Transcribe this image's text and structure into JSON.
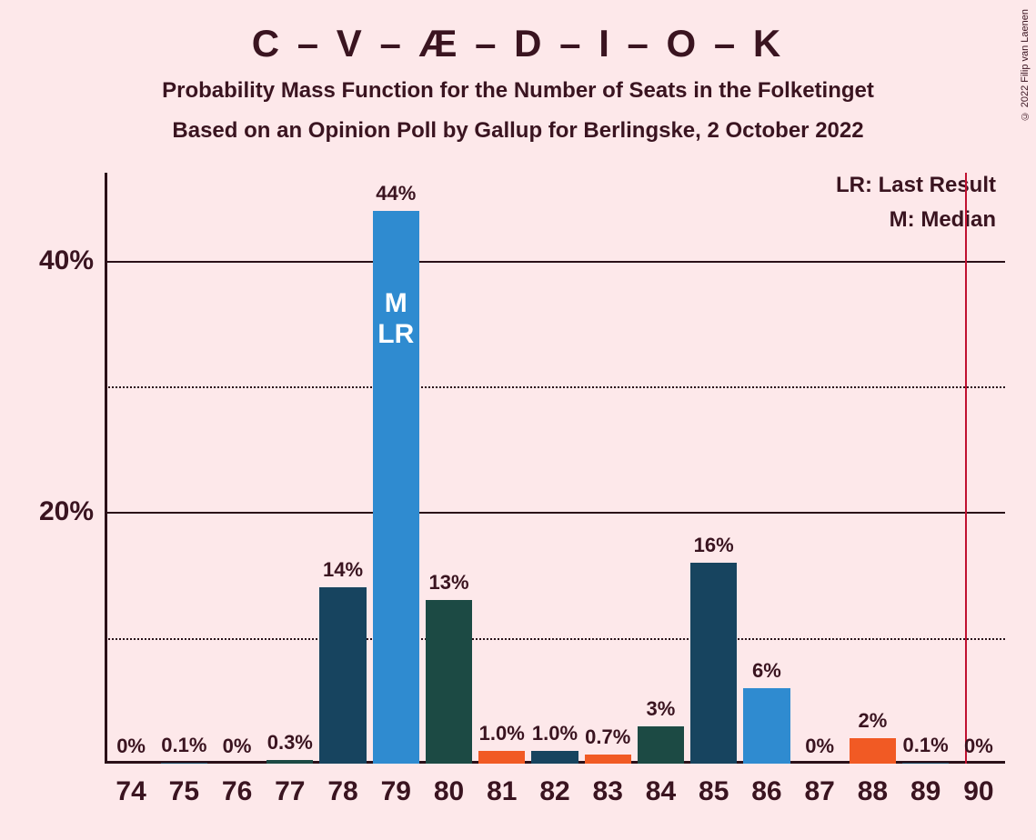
{
  "title": "C – V – Æ – D – I – O – K",
  "subtitle": "Probability Mass Function for the Number of Seats in the Folketinget",
  "subtitle2": "Based on an Opinion Poll by Gallup for Berlingske, 2 October 2022",
  "copyright": "© 2022 Filip van Laenen",
  "legend": {
    "lr": "LR: Last Result",
    "m": "M: Median"
  },
  "y_axis": {
    "ticks": [
      {
        "value": 10,
        "label": "",
        "style": "dotted"
      },
      {
        "value": 20,
        "label": "20%",
        "style": "solid"
      },
      {
        "value": 30,
        "label": "",
        "style": "dotted"
      },
      {
        "value": 40,
        "label": "40%",
        "style": "solid"
      }
    ],
    "max": 47
  },
  "x_categories": [
    74,
    75,
    76,
    77,
    78,
    79,
    80,
    81,
    82,
    83,
    84,
    85,
    86,
    87,
    88,
    89,
    90
  ],
  "bars": [
    {
      "x": 74,
      "value": 0,
      "label": "0%",
      "color": "#17445f"
    },
    {
      "x": 75,
      "value": 0.1,
      "label": "0.1%",
      "color": "#17445f"
    },
    {
      "x": 76,
      "value": 0,
      "label": "0%",
      "color": "#17445f"
    },
    {
      "x": 77,
      "value": 0.3,
      "label": "0.3%",
      "color": "#1c4a44"
    },
    {
      "x": 78,
      "value": 14,
      "label": "14%",
      "color": "#17445f"
    },
    {
      "x": 79,
      "value": 44,
      "label": "44%",
      "color": "#2f8bd0",
      "inbar": "M\nLR"
    },
    {
      "x": 80,
      "value": 13,
      "label": "13%",
      "color": "#1c4a44"
    },
    {
      "x": 81,
      "value": 1.0,
      "label": "1.0%",
      "color": "#f15a24"
    },
    {
      "x": 82,
      "value": 1.0,
      "label": "1.0%",
      "color": "#17445f"
    },
    {
      "x": 83,
      "value": 0.7,
      "label": "0.7%",
      "color": "#f15a24"
    },
    {
      "x": 84,
      "value": 3,
      "label": "3%",
      "color": "#1c4a44"
    },
    {
      "x": 85,
      "value": 16,
      "label": "16%",
      "color": "#17445f"
    },
    {
      "x": 86,
      "value": 6,
      "label": "6%",
      "color": "#2f8bd0"
    },
    {
      "x": 87,
      "value": 0,
      "label": "0%",
      "color": "#17445f"
    },
    {
      "x": 88,
      "value": 2,
      "label": "2%",
      "color": "#f15a24"
    },
    {
      "x": 89,
      "value": 0.1,
      "label": "0.1%",
      "color": "#17445f"
    },
    {
      "x": 90,
      "value": 0,
      "label": "0%",
      "color": "#17445f"
    }
  ],
  "vline_x": 89.75,
  "vline_color": "#c01030",
  "background_color": "#fde8ea",
  "title_color": "#3a1420"
}
